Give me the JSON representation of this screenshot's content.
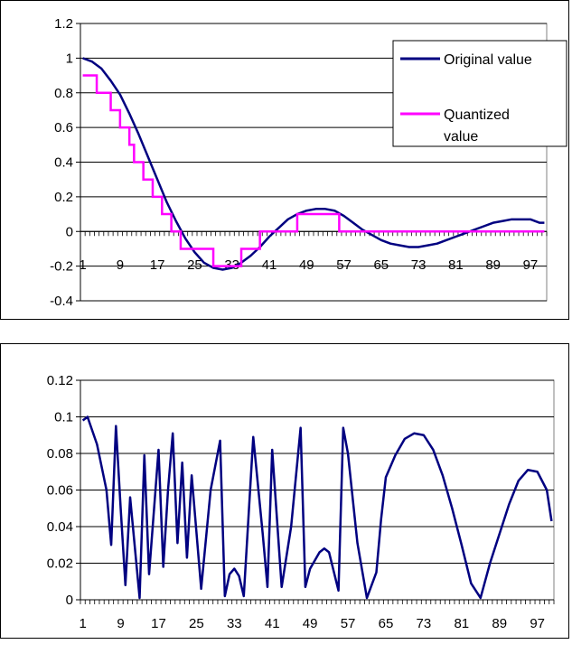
{
  "chart_data": [
    {
      "type": "line",
      "title": "",
      "xlabel": "",
      "ylabel": "",
      "xlim": [
        1,
        100
      ],
      "ylim": [
        -0.4,
        1.2
      ],
      "x_tick_labels": [
        "1",
        "9",
        "17",
        "25",
        "33",
        "41",
        "49",
        "57",
        "65",
        "73",
        "81",
        "89",
        "97"
      ],
      "y_tick_labels": [
        "1.2",
        "1",
        "0.8",
        "0.6",
        "0.4",
        "0.2",
        "0",
        "-0.2",
        "-0.4"
      ],
      "grid": "horizontal",
      "legend": "right",
      "colors": {
        "original": "#000080",
        "quantized": "#ff00ff"
      },
      "series": [
        {
          "name": "Original value",
          "x": [
            1,
            3,
            5,
            7,
            9,
            11,
            13,
            15,
            17,
            19,
            21,
            23,
            25,
            27,
            29,
            31,
            33,
            35,
            37,
            39,
            41,
            43,
            45,
            47,
            49,
            51,
            53,
            55,
            57,
            59,
            61,
            63,
            65,
            67,
            69,
            71,
            73,
            75,
            77,
            79,
            81,
            83,
            85,
            87,
            89,
            91,
            93,
            95,
            97,
            99,
            100
          ],
          "values": [
            1,
            0.98,
            0.94,
            0.87,
            0.79,
            0.68,
            0.56,
            0.43,
            0.3,
            0.17,
            0.06,
            -0.04,
            -0.12,
            -0.18,
            -0.21,
            -0.22,
            -0.21,
            -0.18,
            -0.14,
            -0.09,
            -0.03,
            0.02,
            0.07,
            0.1,
            0.12,
            0.13,
            0.13,
            0.12,
            0.09,
            0.05,
            0.01,
            -0.02,
            -0.05,
            -0.07,
            -0.08,
            -0.09,
            -0.09,
            -0.08,
            -0.07,
            -0.05,
            -0.03,
            -0.01,
            0.01,
            0.03,
            0.05,
            0.06,
            0.07,
            0.07,
            0.07,
            0.05,
            0.05
          ]
        },
        {
          "name": "Quantized value",
          "x": [
            1,
            4,
            4,
            7,
            7,
            9,
            9,
            11,
            11,
            12,
            12,
            14,
            14,
            16,
            16,
            18,
            18,
            20,
            20,
            22,
            22,
            24,
            24,
            26,
            26,
            29,
            29,
            35,
            35,
            39,
            39,
            47,
            47,
            56,
            56,
            100
          ],
          "values": [
            0.9,
            0.9,
            0.8,
            0.8,
            0.7,
            0.7,
            0.6,
            0.6,
            0.5,
            0.5,
            0.4,
            0.4,
            0.3,
            0.3,
            0.2,
            0.2,
            0.1,
            0.1,
            0,
            0,
            -0.1,
            -0.1,
            -0.1,
            -0.1,
            -0.1,
            -0.1,
            -0.2,
            -0.2,
            -0.1,
            -0.1,
            0,
            0,
            0.1,
            0.1,
            0,
            0
          ]
        }
      ]
    },
    {
      "type": "line",
      "title": "",
      "xlabel": "",
      "ylabel": "",
      "xlim": [
        1,
        100
      ],
      "ylim": [
        0,
        0.12
      ],
      "x_tick_labels": [
        "1",
        "9",
        "17",
        "25",
        "33",
        "41",
        "49",
        "57",
        "65",
        "73",
        "81",
        "89",
        "97"
      ],
      "y_tick_labels": [
        "0.12",
        "0.1",
        "0.08",
        "0.06",
        "0.04",
        "0.02",
        "0"
      ],
      "grid": "horizontal",
      "legend": "none",
      "colors": {
        "line": "#000080"
      },
      "series": [
        {
          "x": [
            1,
            2,
            4,
            6,
            7,
            8,
            9,
            10,
            11,
            13,
            14,
            15,
            16,
            17,
            18,
            19,
            20,
            21,
            22,
            23,
            24,
            26,
            28,
            30,
            31,
            32,
            33,
            34,
            35,
            37,
            39,
            40,
            41,
            43,
            45,
            47,
            48,
            49,
            51,
            52,
            53,
            55,
            56,
            57,
            59,
            61,
            63,
            64,
            65,
            67,
            69,
            71,
            73,
            75,
            77,
            79,
            81,
            83,
            85,
            87,
            89,
            91,
            93,
            95,
            97,
            99,
            100
          ],
          "values": [
            0.098,
            0.1,
            0.085,
            0.06,
            0.03,
            0.095,
            0.05,
            0.008,
            0.056,
            0.001,
            0.079,
            0.014,
            0.048,
            0.082,
            0.018,
            0.06,
            0.091,
            0.031,
            0.075,
            0.023,
            0.068,
            0.006,
            0.06,
            0.087,
            0.002,
            0.014,
            0.017,
            0.013,
            0.002,
            0.089,
            0.036,
            0.007,
            0.082,
            0.007,
            0.04,
            0.094,
            0.007,
            0.017,
            0.026,
            0.028,
            0.026,
            0.005,
            0.094,
            0.08,
            0.031,
            0.001,
            0.015,
            0.044,
            0.067,
            0.079,
            0.088,
            0.091,
            0.09,
            0.082,
            0.068,
            0.05,
            0.03,
            0.009,
            0.001,
            0.02,
            0.036,
            0.052,
            0.065,
            0.071,
            0.07,
            0.06,
            0.043
          ]
        }
      ]
    }
  ]
}
